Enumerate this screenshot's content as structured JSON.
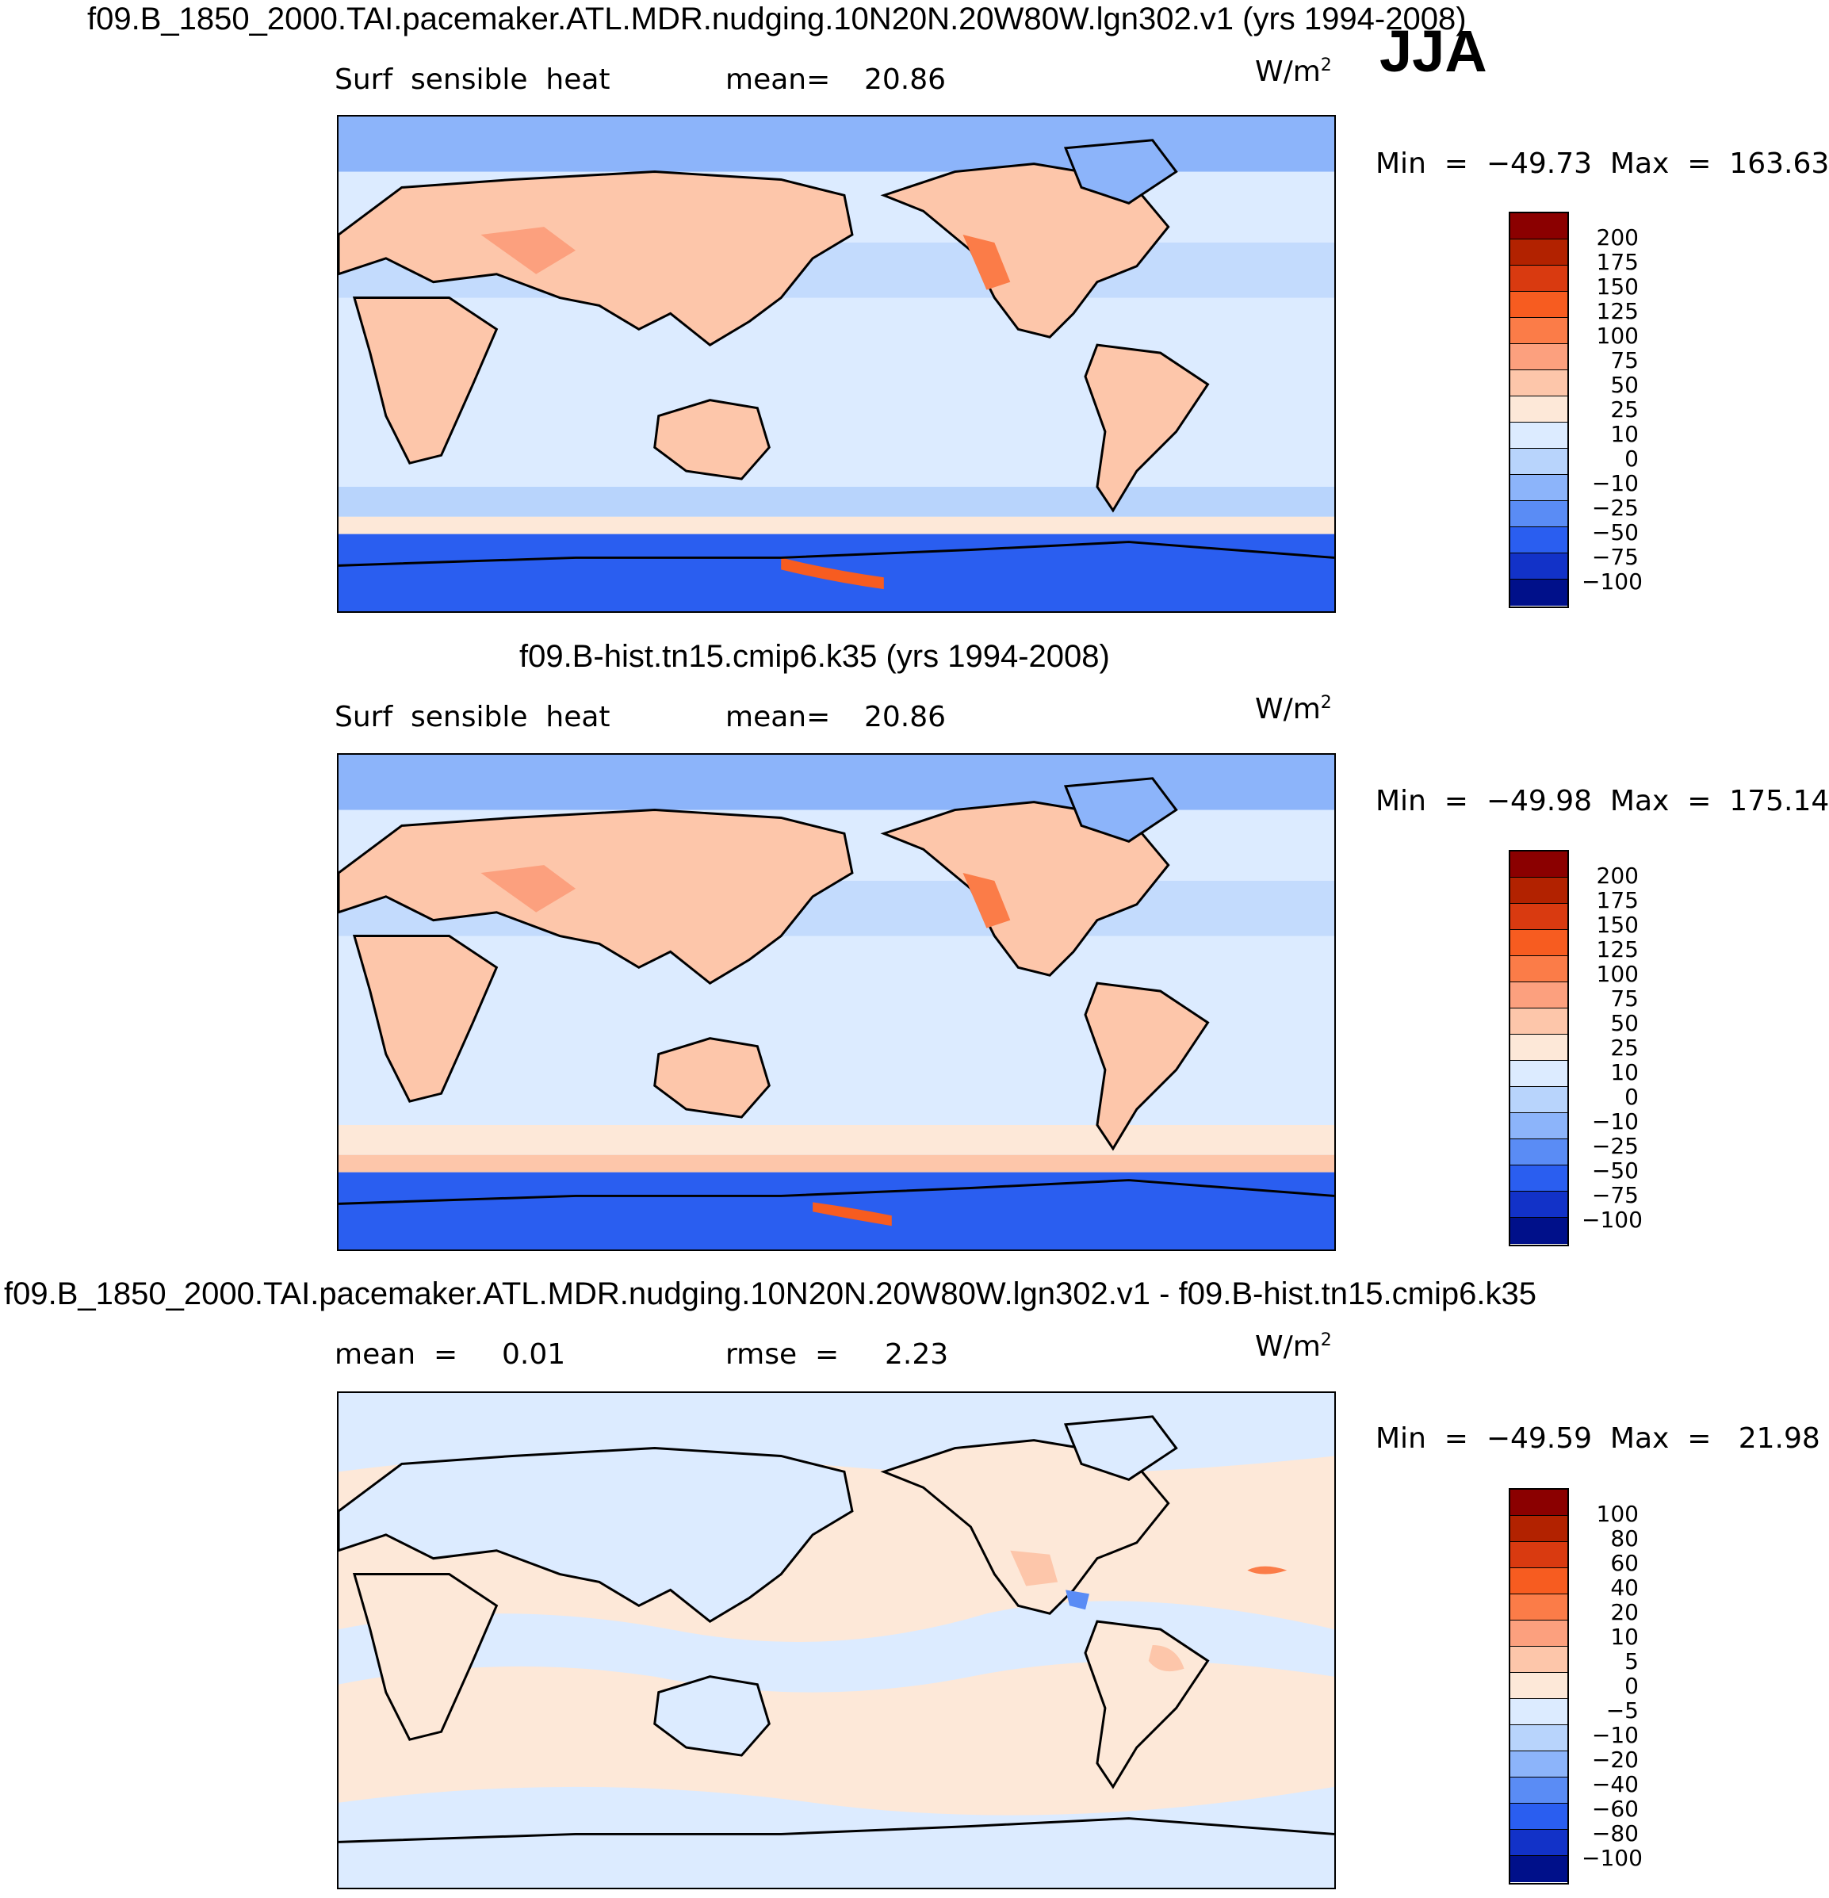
{
  "season": "JJA",
  "units": "W/m",
  "units_exp": "2",
  "panels": [
    {
      "title": "f09.B_1850_2000.TAI.pacemaker.ATL.MDR.nudging.10N20N.20W80W.lgn302.v1 (yrs 1994-2008)",
      "left_label": "Surf  sensible  heat",
      "stat_label": "mean=",
      "stat_value": "20.86",
      "extra_label": "",
      "extra_value": "",
      "minmax": "Min  =  −49.73  Max  =  163.63",
      "levels": [
        "200",
        "175",
        "150",
        "125",
        "100",
        "75",
        "50",
        "25",
        "10",
        "0",
        "−10",
        "−25",
        "−50",
        "−75",
        "−100"
      ],
      "colors": [
        "#8b0000",
        "#b22200",
        "#d93a10",
        "#f75c20",
        "#fb7c48",
        "#fca07e",
        "#fdc6aa",
        "#fde8d8",
        "#dcebff",
        "#b8d4fc",
        "#8cb4fa",
        "#5a8cf5",
        "#2a5ef0",
        "#1232c8",
        "#00108a"
      ]
    },
    {
      "title": "f09.B-hist.tn15.cmip6.k35 (yrs 1994-2008)",
      "left_label": "Surf  sensible  heat",
      "stat_label": "mean=",
      "stat_value": "20.86",
      "extra_label": "",
      "extra_value": "",
      "minmax": "Min  =  −49.98  Max  =  175.14",
      "levels": [
        "200",
        "175",
        "150",
        "125",
        "100",
        "75",
        "50",
        "25",
        "10",
        "0",
        "−10",
        "−25",
        "−50",
        "−75",
        "−100"
      ],
      "colors": [
        "#8b0000",
        "#b22200",
        "#d93a10",
        "#f75c20",
        "#fb7c48",
        "#fca07e",
        "#fdc6aa",
        "#fde8d8",
        "#dcebff",
        "#b8d4fc",
        "#8cb4fa",
        "#5a8cf5",
        "#2a5ef0",
        "#1232c8",
        "#00108a"
      ]
    },
    {
      "title": "f09.B_1850_2000.TAI.pacemaker.ATL.MDR.nudging.10N20N.20W80W.lgn302.v1 - f09.B-hist.tn15.cmip6.k35",
      "left_label": "mean  =",
      "stat_label": "",
      "stat_value": "0.01",
      "extra_label": "rmse  =",
      "extra_value": "2.23",
      "minmax": "Min  =  −49.59  Max  =   21.98",
      "levels": [
        "100",
        "80",
        "60",
        "40",
        "20",
        "10",
        "5",
        "0",
        "−5",
        "−10",
        "−20",
        "−40",
        "−60",
        "−80",
        "−100"
      ],
      "colors": [
        "#8b0000",
        "#b22200",
        "#d93a10",
        "#f75c20",
        "#fb7c48",
        "#fca07e",
        "#fdc6aa",
        "#fde8d8",
        "#dcebff",
        "#b8d4fc",
        "#8cb4fa",
        "#5a8cf5",
        "#2a5ef0",
        "#1232c8",
        "#00108a"
      ]
    }
  ]
}
